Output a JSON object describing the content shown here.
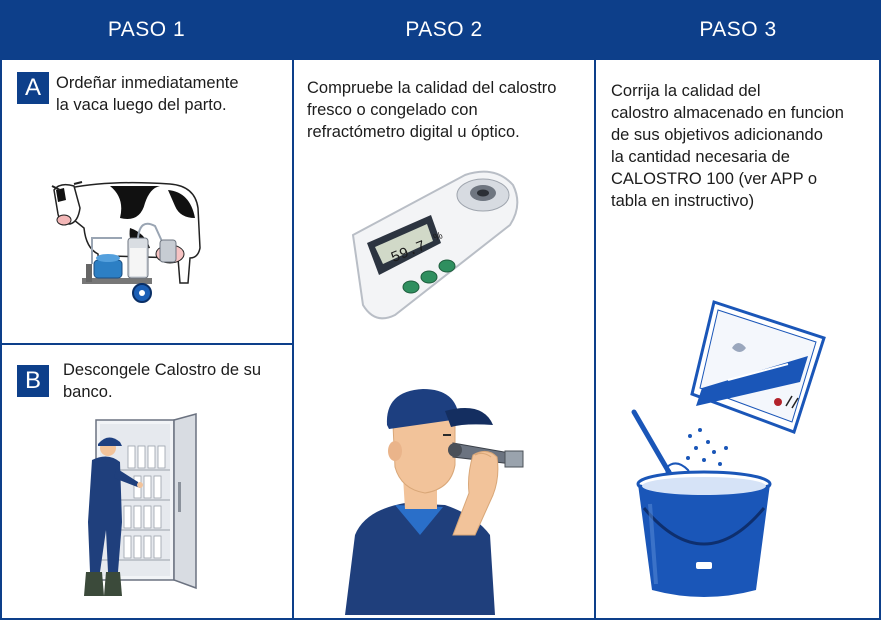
{
  "steps": [
    {
      "title": "PASO 1"
    },
    {
      "title": "PASO 2"
    },
    {
      "title": "PASO 3"
    }
  ],
  "step1": {
    "a": {
      "badge": "A",
      "line1": "Ordeñar inmediatamente",
      "line2": "la vaca luego del parto."
    },
    "b": {
      "badge": "B",
      "line1": "Descongele Calostro de su",
      "line2": "banco."
    }
  },
  "step2": {
    "line1": "Compruebe la calidad del calostro",
    "line2": "fresco o congelado con",
    "line3": "refractómetro digital u óptico.",
    "device_reading": "59.7",
    "device_unit": "%"
  },
  "step3": {
    "line1": "Corrija la calidad del",
    "line2": "calostro almacenado en funcion",
    "line3": "de sus objetivos adicionando",
    "line4": "la cantidad necesaria de",
    "line5": "CALOSTRO 100 (ver APP o",
    "line6": "tabla en instructivo)"
  },
  "colors": {
    "brand_blue": "#0d3f8a",
    "bucket_blue": "#1a56b8",
    "skin": "#f2c39a"
  },
  "icons": [
    "cow-milking-machine-icon",
    "freezer-farmer-icon",
    "refractometer-icon",
    "farmer-refractometer-icon",
    "colostrum-packet-icon",
    "bucket-whisk-icon"
  ]
}
